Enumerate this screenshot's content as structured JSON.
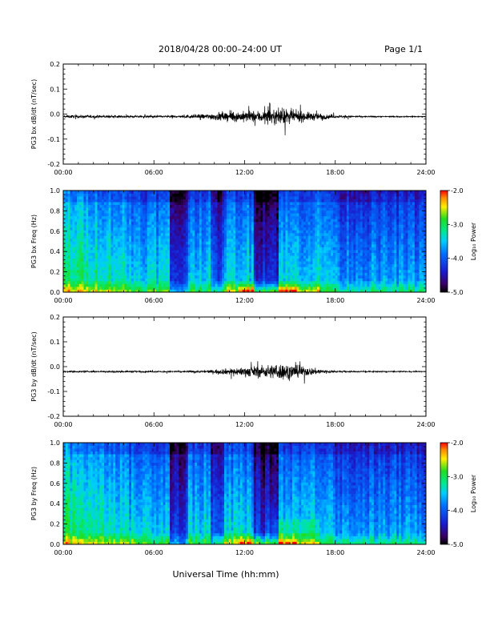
{
  "header": {
    "title": "2018/04/28  00:00–24:00 UT",
    "page": "Page 1/1"
  },
  "footer": {
    "xlabel": "Universal Time (hh:mm)"
  },
  "colorbar": {
    "label": "Log₁₀ Power",
    "ticks": [
      "-2.0",
      "-3.0",
      "-4.0",
      "-5.0"
    ],
    "tick_values": [
      -2.0,
      -3.0,
      -4.0,
      -5.0
    ],
    "range": [
      -5.0,
      -2.0
    ]
  },
  "chart_data": [
    {
      "type": "line",
      "ylabel": "PG3 bx dB/dt (nT/sec)",
      "xticks": [
        "00:00",
        "06:00",
        "12:00",
        "18:00",
        "24:00"
      ],
      "xlim_hours": [
        0,
        24
      ],
      "ylim": [
        -0.2,
        0.2
      ],
      "yticks": [
        "0.2",
        "0.1",
        "0.0",
        "-0.1",
        "-0.2"
      ],
      "ytick_values": [
        0.2,
        0.1,
        0.0,
        -0.1,
        -0.2
      ],
      "baseline": -0.01,
      "envelope": [
        {
          "t": 0,
          "a": 0.006
        },
        {
          "t": 0.5,
          "a": 0.012
        },
        {
          "t": 3,
          "a": 0.008
        },
        {
          "t": 6,
          "a": 0.008
        },
        {
          "t": 8,
          "a": 0.01
        },
        {
          "t": 9.5,
          "a": 0.02
        },
        {
          "t": 10.5,
          "a": 0.035
        },
        {
          "t": 12,
          "a": 0.04
        },
        {
          "t": 13.5,
          "a": 0.05
        },
        {
          "t": 14.5,
          "a": 0.06
        },
        {
          "t": 16,
          "a": 0.035
        },
        {
          "t": 17,
          "a": 0.025
        },
        {
          "t": 18,
          "a": 0.01
        },
        {
          "t": 20,
          "a": 0.005
        },
        {
          "t": 24,
          "a": 0.004
        }
      ]
    },
    {
      "type": "heatmap",
      "ylabel": "PG3 bx Freq (Hz)",
      "xticks": [
        "00:00",
        "06:00",
        "12:00",
        "18:00",
        "24:00"
      ],
      "xlim_hours": [
        0,
        24
      ],
      "ylim": [
        0.0,
        1.0
      ],
      "yticks": [
        "1.0",
        "0.8",
        "0.6",
        "0.4",
        "0.2",
        "0.0"
      ],
      "ytick_values": [
        1.0,
        0.8,
        0.6,
        0.4,
        0.2,
        0.0
      ],
      "zlim": [
        -5.0,
        -2.0
      ]
    },
    {
      "type": "line",
      "ylabel": "PG3 by dB/dt (nT/sec)",
      "xticks": [
        "00:00",
        "06:00",
        "12:00",
        "18:00",
        "24:00"
      ],
      "xlim_hours": [
        0,
        24
      ],
      "ylim": [
        -0.2,
        0.2
      ],
      "yticks": [
        "0.2",
        "0.1",
        "0.0",
        "-0.1",
        "-0.2"
      ],
      "ytick_values": [
        0.2,
        0.1,
        0.0,
        -0.1,
        -0.2
      ],
      "baseline": -0.02,
      "envelope": [
        {
          "t": 0,
          "a": 0.005
        },
        {
          "t": 3,
          "a": 0.006
        },
        {
          "t": 6,
          "a": 0.005
        },
        {
          "t": 8,
          "a": 0.006
        },
        {
          "t": 9.5,
          "a": 0.01
        },
        {
          "t": 10.5,
          "a": 0.02
        },
        {
          "t": 12,
          "a": 0.035
        },
        {
          "t": 13.5,
          "a": 0.05
        },
        {
          "t": 14.5,
          "a": 0.065
        },
        {
          "t": 16,
          "a": 0.035
        },
        {
          "t": 17,
          "a": 0.02
        },
        {
          "t": 18,
          "a": 0.006
        },
        {
          "t": 24,
          "a": 0.003
        }
      ]
    },
    {
      "type": "heatmap",
      "ylabel": "PG3 by Freq (Hz)",
      "xticks": [
        "00:00",
        "06:00",
        "12:00",
        "18:00",
        "24:00"
      ],
      "xlim_hours": [
        0,
        24
      ],
      "ylim": [
        0.0,
        1.0
      ],
      "yticks": [
        "1.0",
        "0.8",
        "0.6",
        "0.4",
        "0.2",
        "0.0"
      ],
      "ytick_values": [
        1.0,
        0.8,
        0.6,
        0.4,
        0.2,
        0.0
      ],
      "zlim": [
        -5.0,
        -2.0
      ]
    }
  ]
}
